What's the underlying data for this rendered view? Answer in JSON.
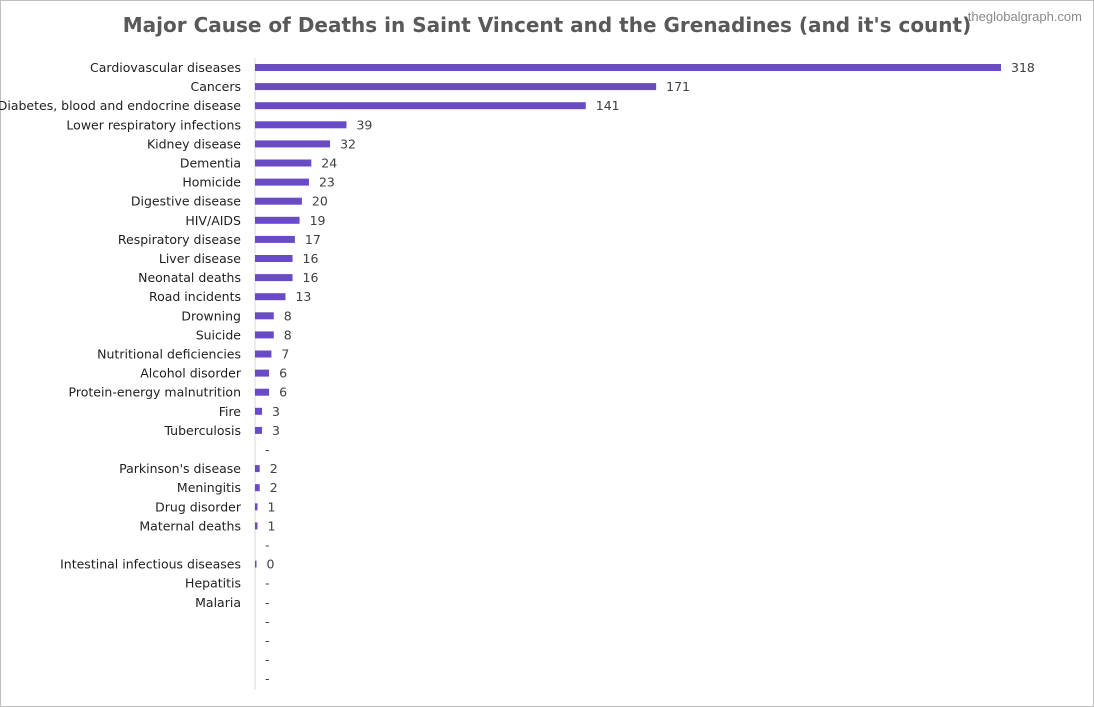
{
  "title": "Major Cause of Deaths in Saint Vincent and the Grenadines (and it's count)",
  "watermark": "theglobalgraph.com",
  "chart_data": {
    "type": "bar",
    "orientation": "horizontal",
    "bar_color": "#6a4bc6",
    "xlim": [
      0,
      318
    ],
    "categories": [
      "Cardiovascular diseases",
      "Cancers",
      "Diabetes, blood and endocrine disease",
      "Lower respiratory infections",
      "Kidney disease",
      "Dementia",
      "Homicide",
      "Digestive disease",
      "HIV/AIDS",
      "Respiratory disease",
      "Liver disease",
      "Neonatal deaths",
      "Road incidents",
      "Drowning",
      "Suicide",
      "Nutritional deficiencies",
      "Alcohol disorder",
      "Protein-energy malnutrition",
      "Fire",
      "Tuberculosis",
      "",
      "Parkinson's disease",
      "Meningitis",
      "Drug disorder",
      "Maternal deaths",
      "",
      "Intestinal infectious diseases",
      "Hepatitis",
      "Malaria",
      "",
      "",
      "",
      ""
    ],
    "values": [
      318,
      171,
      141,
      39,
      32,
      24,
      23,
      20,
      19,
      17,
      16,
      16,
      13,
      8,
      8,
      7,
      6,
      6,
      3,
      3,
      null,
      2,
      2,
      1,
      1,
      null,
      0,
      null,
      null,
      null,
      null,
      null,
      null
    ],
    "labels": [
      "318",
      "171",
      "141",
      "39",
      "32",
      "24",
      "23",
      "20",
      "19",
      "17",
      "16",
      "16",
      "13",
      "8",
      "8",
      "7",
      "6",
      "6",
      "3",
      "3",
      "-",
      "2",
      "2",
      "1",
      "1",
      "-",
      "0",
      "-",
      "-",
      "-",
      "-",
      "-",
      "-"
    ]
  }
}
